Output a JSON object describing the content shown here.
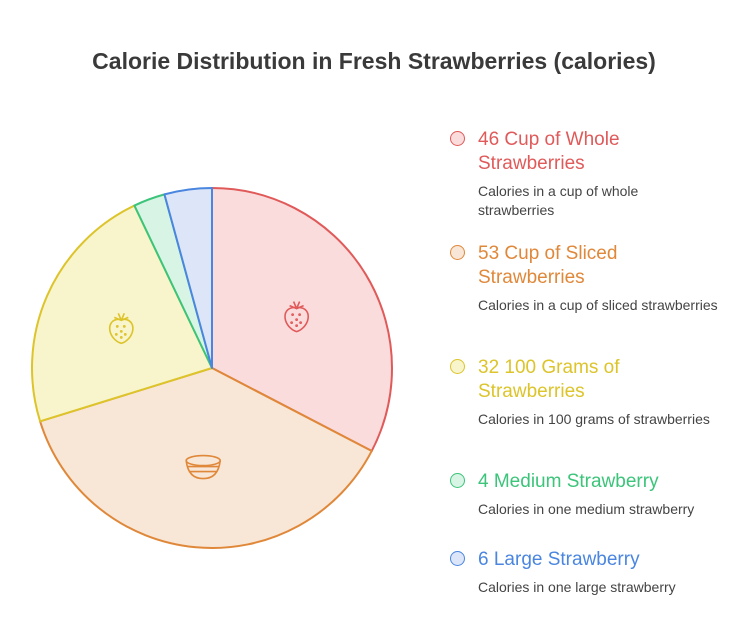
{
  "chart_data": {
    "type": "pie",
    "title": "Calorie Distribution in Fresh Strawberries (calories)",
    "categories": [
      "Cup of Whole Strawberries",
      "Cup of Sliced Strawberries",
      "100 Grams of Strawberries",
      "Medium Strawberry",
      "Large Strawberry"
    ],
    "values": [
      46,
      53,
      32,
      4,
      6
    ],
    "descriptions": [
      "Calories in a cup of whole strawberries",
      "Calories in a cup of sliced strawberries",
      "Calories in 100 grams of strawberries",
      "Calories in one medium strawberry",
      "Calories in one large strawberry"
    ],
    "colors": [
      "#e05a5a",
      "#e0883a",
      "#dcc42a",
      "#3cc47a",
      "#4a86e0"
    ],
    "fills": [
      "#fadcdc",
      "#f8e6d6",
      "#f8f4cc",
      "#d8f4e4",
      "#dce6f8"
    ]
  }
}
